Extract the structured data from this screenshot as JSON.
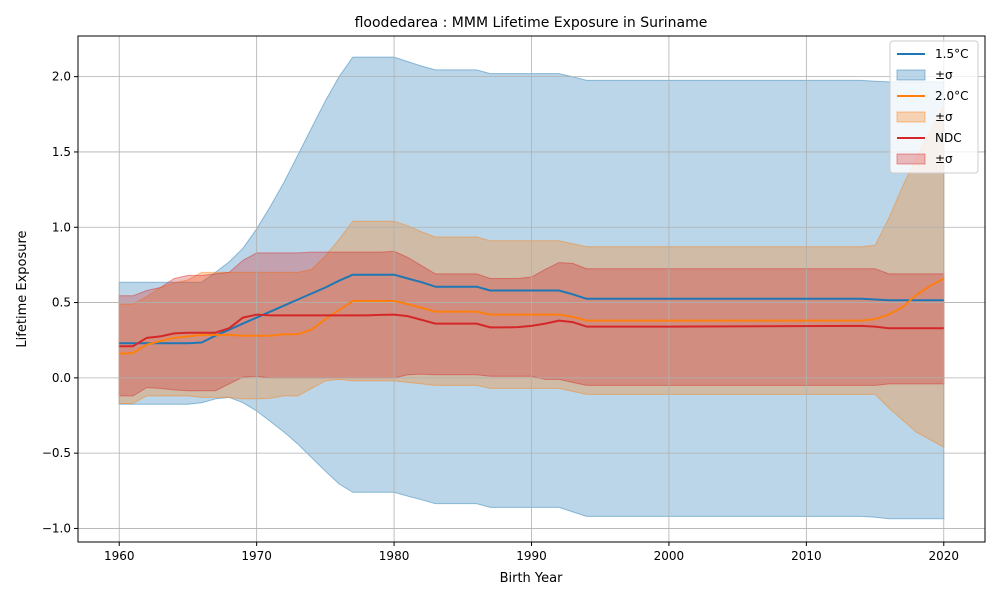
{
  "chart_data": {
    "type": "line",
    "title": "floodedarea : MMM Lifetime Exposure in Suriname",
    "xlabel": "Birth Year",
    "ylabel": "Lifetime Exposure",
    "xlim": [
      1957,
      2023
    ],
    "ylim": [
      -1.09,
      2.27
    ],
    "xticks": [
      1960,
      1970,
      1980,
      1990,
      2000,
      2010,
      2020
    ],
    "yticks": [
      -1.0,
      -0.5,
      0.0,
      0.5,
      1.0,
      1.5,
      2.0
    ],
    "xtick_labels": [
      "1960",
      "1970",
      "1980",
      "1990",
      "2000",
      "2010",
      "2020"
    ],
    "ytick_labels": [
      "−1.0",
      "−0.5",
      "0.0",
      "0.5",
      "1.0",
      "1.5",
      "2.0"
    ],
    "grid": true,
    "legend_position": "top-right",
    "series": [
      {
        "name": "1.5°C",
        "band_label": "±σ",
        "color": "#1f77b4",
        "x": [
          1960,
          1961,
          1962,
          1963,
          1964,
          1965,
          1966,
          1967,
          1968,
          1969,
          1970,
          1971,
          1972,
          1973,
          1974,
          1975,
          1976,
          1977,
          1978,
          1979,
          1980,
          1981,
          1982,
          1983,
          1984,
          1985,
          1986,
          1987,
          1988,
          1989,
          1990,
          1991,
          1992,
          1993,
          1994,
          2000,
          2014,
          2015,
          2016,
          2017,
          2018,
          2019,
          2020
        ],
        "mean": [
          0.23,
          0.23,
          0.23,
          0.23,
          0.23,
          0.23,
          0.235,
          0.28,
          0.32,
          0.36,
          0.4,
          0.44,
          0.48,
          0.52,
          0.56,
          0.6,
          0.645,
          0.685,
          0.685,
          0.685,
          0.685,
          0.66,
          0.635,
          0.605,
          0.605,
          0.605,
          0.605,
          0.58,
          0.58,
          0.58,
          0.58,
          0.58,
          0.58,
          0.555,
          0.525,
          0.525,
          0.525,
          0.52,
          0.515,
          0.515,
          0.515,
          0.515,
          0.515
        ],
        "upper": [
          0.635,
          0.635,
          0.635,
          0.635,
          0.635,
          0.635,
          0.635,
          0.7,
          0.77,
          0.86,
          0.99,
          1.14,
          1.3,
          1.48,
          1.66,
          1.84,
          2.0,
          2.13,
          2.13,
          2.13,
          2.13,
          2.1,
          2.07,
          2.045,
          2.045,
          2.045,
          2.045,
          2.02,
          2.02,
          2.02,
          2.02,
          2.02,
          2.02,
          2.0,
          1.975,
          1.975,
          1.975,
          1.97,
          1.965,
          1.965,
          1.965,
          1.965,
          1.965
        ],
        "lower": [
          -0.175,
          -0.175,
          -0.175,
          -0.175,
          -0.175,
          -0.175,
          -0.165,
          -0.14,
          -0.13,
          -0.165,
          -0.22,
          -0.29,
          -0.36,
          -0.44,
          -0.53,
          -0.62,
          -0.705,
          -0.76,
          -0.76,
          -0.76,
          -0.76,
          -0.785,
          -0.81,
          -0.835,
          -0.835,
          -0.835,
          -0.835,
          -0.86,
          -0.86,
          -0.86,
          -0.86,
          -0.86,
          -0.86,
          -0.89,
          -0.92,
          -0.92,
          -0.92,
          -0.925,
          -0.935,
          -0.935,
          -0.935,
          -0.935,
          -0.935
        ]
      },
      {
        "name": "2.0°C",
        "band_label": "±σ",
        "color": "#ff7f0e",
        "x": [
          1960,
          1961,
          1962,
          1963,
          1964,
          1965,
          1966,
          1967,
          1968,
          1969,
          1970,
          1971,
          1972,
          1973,
          1974,
          1975,
          1976,
          1977,
          1978,
          1979,
          1980,
          1981,
          1982,
          1983,
          1984,
          1985,
          1986,
          1987,
          1988,
          1989,
          1990,
          1991,
          1992,
          1993,
          1994,
          2000,
          2014,
          2015,
          2016,
          2017,
          2018,
          2019,
          2020
        ],
        "mean": [
          0.16,
          0.165,
          0.22,
          0.245,
          0.265,
          0.275,
          0.285,
          0.285,
          0.285,
          0.28,
          0.28,
          0.28,
          0.29,
          0.29,
          0.32,
          0.39,
          0.45,
          0.51,
          0.51,
          0.51,
          0.51,
          0.49,
          0.465,
          0.44,
          0.44,
          0.44,
          0.44,
          0.42,
          0.42,
          0.42,
          0.42,
          0.42,
          0.42,
          0.405,
          0.38,
          0.38,
          0.38,
          0.39,
          0.42,
          0.47,
          0.55,
          0.61,
          0.66
        ],
        "upper": [
          0.49,
          0.49,
          0.54,
          0.6,
          0.63,
          0.65,
          0.7,
          0.7,
          0.7,
          0.7,
          0.7,
          0.7,
          0.7,
          0.7,
          0.72,
          0.81,
          0.92,
          1.04,
          1.04,
          1.04,
          1.04,
          1.01,
          0.97,
          0.935,
          0.935,
          0.935,
          0.935,
          0.91,
          0.91,
          0.91,
          0.91,
          0.91,
          0.91,
          0.89,
          0.87,
          0.87,
          0.87,
          0.88,
          1.06,
          1.27,
          1.46,
          1.64,
          1.81
        ],
        "lower": [
          -0.17,
          -0.17,
          -0.12,
          -0.12,
          -0.12,
          -0.12,
          -0.13,
          -0.13,
          -0.13,
          -0.14,
          -0.14,
          -0.135,
          -0.12,
          -0.12,
          -0.07,
          -0.02,
          -0.01,
          -0.02,
          -0.02,
          -0.02,
          -0.02,
          -0.03,
          -0.04,
          -0.05,
          -0.05,
          -0.05,
          -0.05,
          -0.07,
          -0.07,
          -0.07,
          -0.07,
          -0.07,
          -0.07,
          -0.09,
          -0.11,
          -0.11,
          -0.11,
          -0.11,
          -0.2,
          -0.28,
          -0.36,
          -0.41,
          -0.46
        ]
      },
      {
        "name": "NDC",
        "band_label": "±σ",
        "color": "#d62728",
        "x": [
          1960,
          1961,
          1962,
          1963,
          1964,
          1965,
          1966,
          1967,
          1968,
          1969,
          1970,
          1971,
          1972,
          1973,
          1974,
          1975,
          1976,
          1977,
          1978,
          1979,
          1980,
          1981,
          1982,
          1983,
          1984,
          1985,
          1986,
          1987,
          1988,
          1989,
          1990,
          1991,
          1992,
          1993,
          1994,
          2000,
          2014,
          2015,
          2016,
          2017,
          2018,
          2019,
          2020
        ],
        "mean": [
          0.21,
          0.21,
          0.265,
          0.275,
          0.295,
          0.3,
          0.3,
          0.3,
          0.33,
          0.4,
          0.42,
          0.415,
          0.415,
          0.415,
          0.415,
          0.415,
          0.415,
          0.415,
          0.415,
          0.418,
          0.42,
          0.41,
          0.385,
          0.36,
          0.36,
          0.36,
          0.36,
          0.335,
          0.335,
          0.337,
          0.345,
          0.36,
          0.38,
          0.37,
          0.34,
          0.34,
          0.345,
          0.34,
          0.33,
          0.33,
          0.33,
          0.33,
          0.33
        ],
        "upper": [
          0.545,
          0.545,
          0.58,
          0.6,
          0.66,
          0.68,
          0.68,
          0.69,
          0.7,
          0.78,
          0.83,
          0.83,
          0.83,
          0.83,
          0.835,
          0.835,
          0.835,
          0.835,
          0.835,
          0.835,
          0.84,
          0.8,
          0.745,
          0.69,
          0.69,
          0.69,
          0.69,
          0.66,
          0.66,
          0.66,
          0.67,
          0.72,
          0.765,
          0.76,
          0.725,
          0.725,
          0.725,
          0.725,
          0.69,
          0.69,
          0.69,
          0.69,
          0.69
        ],
        "lower": [
          -0.12,
          -0.12,
          -0.065,
          -0.07,
          -0.08,
          -0.085,
          -0.085,
          -0.085,
          -0.04,
          0.005,
          0.01,
          0.0,
          0.0,
          0.0,
          0.0,
          0.0,
          0.0,
          0.0,
          0.0,
          0.0,
          0.0,
          0.02,
          0.025,
          0.02,
          0.02,
          0.02,
          0.02,
          0.01,
          0.01,
          0.01,
          0.01,
          -0.01,
          -0.01,
          -0.03,
          -0.05,
          -0.05,
          -0.05,
          -0.05,
          -0.04,
          -0.04,
          -0.04,
          -0.04,
          -0.04
        ]
      }
    ]
  }
}
